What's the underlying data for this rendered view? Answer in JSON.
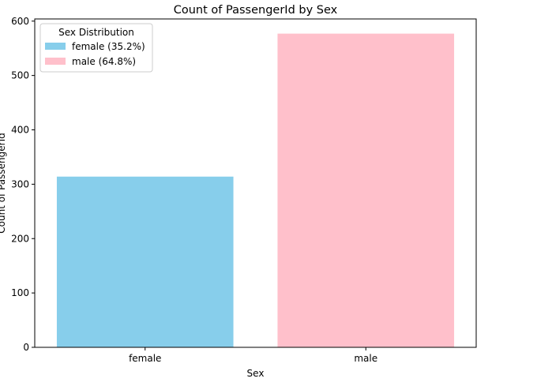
{
  "chart_data": {
    "type": "bar",
    "title": "Count of PassengerId by Sex",
    "xlabel": "Sex",
    "ylabel": "Count of PassengerId",
    "categories": [
      "female",
      "male"
    ],
    "values": [
      314,
      577
    ],
    "colors": [
      "#87CEEB",
      "#FFC0CB"
    ],
    "ylim": [
      0,
      604
    ],
    "yticks": [
      0,
      100,
      200,
      300,
      400,
      500,
      600
    ],
    "grid": false,
    "legend": {
      "title": "Sex Distribution",
      "placement": "top-left",
      "entries": [
        {
          "label": "female (35.2%)",
          "color": "#87CEEB"
        },
        {
          "label": "male (64.8%)",
          "color": "#FFC0CB"
        }
      ]
    }
  }
}
